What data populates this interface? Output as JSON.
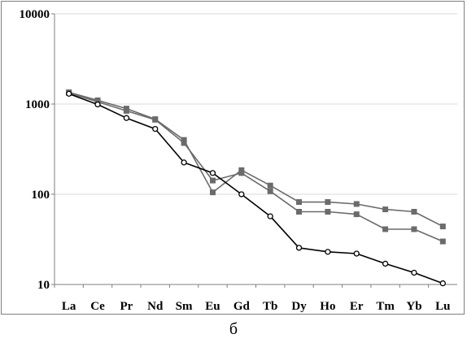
{
  "chart_data": {
    "type": "line",
    "title": "",
    "xlabel": "",
    "ylabel": "",
    "yscale": "log",
    "ylim": [
      10,
      10000
    ],
    "yticks": [
      "10",
      "100",
      "1000",
      "10000"
    ],
    "categories": [
      "La",
      "Ce",
      "Pr",
      "Nd",
      "Sm",
      "Eu",
      "Gd",
      "Tb",
      "Dy",
      "Ho",
      "Er",
      "Tm",
      "Yb",
      "Lu"
    ],
    "grid": true,
    "legend": "none",
    "series": [
      {
        "marker": "square",
        "color": "#6b6b6b",
        "values": [
          1350,
          1100,
          890,
          680,
          400,
          105,
          185,
          125,
          82,
          82,
          78,
          68,
          64,
          44
        ]
      },
      {
        "marker": "square",
        "color": "#6b6b6b",
        "values": [
          1330,
          1060,
          840,
          670,
          370,
          142,
          172,
          108,
          64,
          64,
          60,
          41,
          41,
          30
        ]
      },
      {
        "marker": "open-circle",
        "color": "#000000",
        "values": [
          1300,
          990,
          700,
          530,
          225,
          172,
          100,
          57,
          25.5,
          23,
          22,
          17,
          13.5,
          10.3
        ]
      }
    ]
  },
  "caption": "б"
}
